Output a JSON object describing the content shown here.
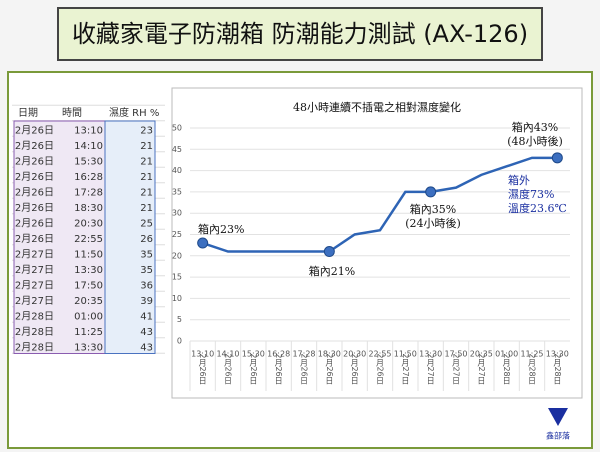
{
  "header": {
    "title": "收藏家電子防潮箱 防潮能力測試 (AX-126)"
  },
  "table": {
    "columns": [
      "日期",
      "時間",
      "濕度 RH %"
    ],
    "rows": [
      [
        "2月26日",
        "13:10",
        23
      ],
      [
        "2月26日",
        "14:10",
        21
      ],
      [
        "2月26日",
        "15:30",
        21
      ],
      [
        "2月26日",
        "16:28",
        21
      ],
      [
        "2月26日",
        "17:28",
        21
      ],
      [
        "2月26日",
        "18:30",
        21
      ],
      [
        "2月26日",
        "20:30",
        25
      ],
      [
        "2月26日",
        "22:55",
        26
      ],
      [
        "2月27日",
        "11:50",
        35
      ],
      [
        "2月27日",
        "13:30",
        35
      ],
      [
        "2月27日",
        "17:50",
        36
      ],
      [
        "2月27日",
        "20:35",
        39
      ],
      [
        "2月28日",
        "01:00",
        41
      ],
      [
        "2月28日",
        "11:25",
        43
      ],
      [
        "2月28日",
        "13:30",
        43
      ]
    ]
  },
  "chart_data": {
    "type": "line",
    "title": "48小時連續不插電之相對濕度變化",
    "categories": [
      "13:10",
      "14:10",
      "15:30",
      "16:28",
      "17:28",
      "18:30",
      "20:30",
      "22:55",
      "11:50",
      "13:30",
      "17:50",
      "20:35",
      "01:00",
      "11:25",
      "13:30"
    ],
    "category_dates": [
      "2月26日",
      "2月26日",
      "2月26日",
      "2月26日",
      "2月26日",
      "2月26日",
      "2月26日",
      "2月26日",
      "2月27日",
      "2月27日",
      "2月27日",
      "2月27日",
      "2月28日",
      "2月28日",
      "2月28日"
    ],
    "values": [
      23,
      21,
      21,
      21,
      21,
      21,
      25,
      26,
      35,
      35,
      36,
      39,
      41,
      43,
      43
    ],
    "color": "#2e64b5",
    "highlight_points": [
      0,
      5,
      9,
      14
    ],
    "ylim": [
      0,
      50
    ],
    "yticks": [
      0,
      5,
      10,
      15,
      20,
      25,
      30,
      35,
      40,
      45,
      50
    ],
    "grid": true,
    "annotations": [
      [
        "箱內23%"
      ],
      [
        "箱內21%"
      ],
      [
        "箱內35%",
        "(24小時後)"
      ],
      [
        "箱內43%",
        "(48小時後)"
      ],
      [
        "箱外",
        "濕度73%",
        "溫度23.6℃"
      ]
    ]
  },
  "logo": "鑫部落"
}
